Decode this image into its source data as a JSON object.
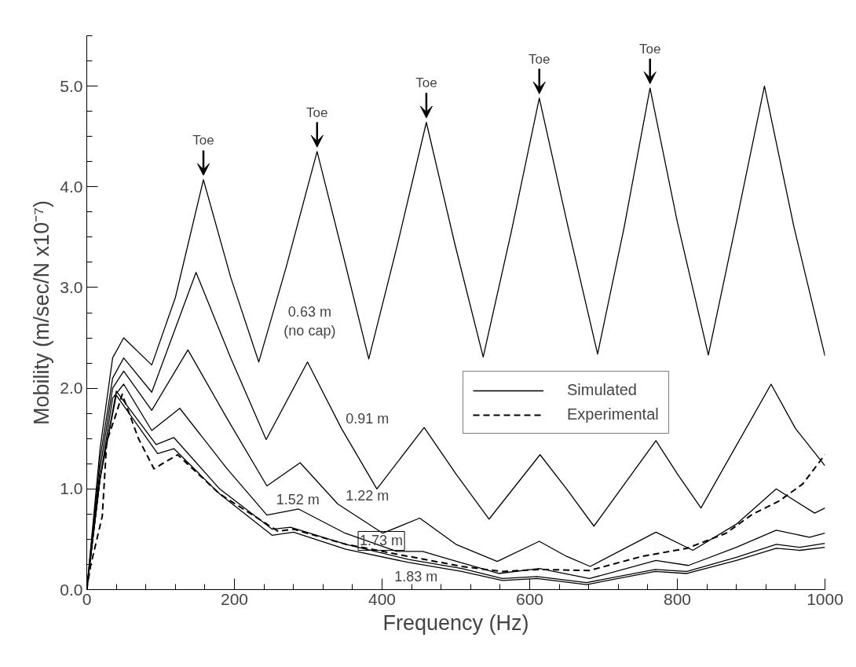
{
  "chart_data": {
    "type": "line",
    "xlabel": "Frequency (Hz)",
    "ylabel": "Mobility (m/sec/N x10⁻⁷)",
    "xlim": [
      0,
      1000
    ],
    "ylim": [
      0,
      5.5
    ],
    "xticks": [
      0,
      {
        "value": 40,
        "label": null
      },
      {
        "value": 80,
        "label": null
      },
      {
        "value": 120,
        "label": null
      },
      {
        "value": 160,
        "label": null
      },
      200,
      {
        "value": 240,
        "label": null
      },
      {
        "value": 280,
        "label": null
      },
      {
        "value": 320,
        "label": null
      },
      {
        "value": 360,
        "label": null
      },
      400,
      {
        "value": 440,
        "label": null
      },
      {
        "value": 480,
        "label": null
      },
      {
        "value": 520,
        "label": null
      },
      {
        "value": 560,
        "label": null
      },
      600,
      {
        "value": 640,
        "label": null
      },
      {
        "value": 680,
        "label": null
      },
      {
        "value": 720,
        "label": null
      },
      {
        "value": 760,
        "label": null
      },
      800,
      {
        "value": 840,
        "label": null
      },
      {
        "value": 880,
        "label": null
      },
      {
        "value": 920,
        "label": null
      },
      {
        "value": 960,
        "label": null
      },
      1000
    ],
    "yticks": [
      {
        "value": 0,
        "label": "0.0"
      },
      {
        "value": 0.25,
        "label": null
      },
      {
        "value": 0.5,
        "label": null
      },
      {
        "value": 0.75,
        "label": null
      },
      {
        "value": 1,
        "label": "1.0"
      },
      {
        "value": 1.25,
        "label": null
      },
      {
        "value": 1.5,
        "label": null
      },
      {
        "value": 1.75,
        "label": null
      },
      {
        "value": 2,
        "label": "2.0"
      },
      {
        "value": 2.25,
        "label": null
      },
      {
        "value": 2.5,
        "label": null
      },
      {
        "value": 2.75,
        "label": null
      },
      {
        "value": 3,
        "label": "3.0"
      },
      {
        "value": 3.25,
        "label": null
      },
      {
        "value": 3.5,
        "label": null
      },
      {
        "value": 3.75,
        "label": null
      },
      {
        "value": 4,
        "label": "4.0"
      },
      {
        "value": 4.25,
        "label": null
      },
      {
        "value": 4.5,
        "label": null
      },
      {
        "value": 4.75,
        "label": null
      },
      {
        "value": 5,
        "label": "5.0"
      },
      {
        "value": 5.25,
        "label": null
      },
      {
        "value": 5.5,
        "label": null
      }
    ],
    "grid": false,
    "legend": "right",
    "marker": "none",
    "series": [
      {
        "name": "Simulated",
        "color": "#000000",
        "line_style": "solid",
        "x": [
          0,
          18,
          35,
          50,
          88,
          120,
          158,
          195,
          233,
          270,
          312,
          348,
          382,
          420,
          460,
          498,
          537,
          575,
          613,
          652,
          692,
          728,
          763,
          800,
          842,
          880,
          918,
          958,
          1000
        ],
        "values": [
          0,
          1.4,
          2.3,
          2.5,
          2.23,
          2.9,
          4.07,
          3.1,
          2.26,
          3.2,
          4.35,
          3.3,
          2.29,
          3.4,
          4.64,
          3.45,
          2.31,
          3.55,
          4.88,
          3.6,
          2.34,
          3.6,
          4.98,
          3.65,
          2.33,
          3.65,
          5.0,
          3.6,
          2.32
        ]
      },
      {
        "color": "#000000",
        "line_style": "solid",
        "x": [
          0,
          18,
          35,
          50,
          88,
          148,
          195,
          243,
          299,
          345,
          393,
          457,
          500,
          545,
          614,
          650,
          687,
          771,
          800,
          832,
          927,
          960,
          1000
        ],
        "values": [
          0,
          1.3,
          2.1,
          2.3,
          1.96,
          3.15,
          2.3,
          1.49,
          2.26,
          1.6,
          1.0,
          1.61,
          1.15,
          0.7,
          1.34,
          1.0,
          0.63,
          1.48,
          1.15,
          0.81,
          2.04,
          1.6,
          1.23
        ]
      },
      {
        "color": "#000000",
        "line_style": "solid",
        "x": [
          0,
          18,
          35,
          50,
          88,
          137,
          190,
          244,
          289,
          340,
          401,
          451,
          500,
          556,
          613,
          650,
          682,
          771,
          821,
          880,
          934,
          986,
          1000
        ],
        "values": [
          0,
          1.2,
          2.0,
          2.17,
          1.78,
          2.38,
          1.7,
          1.03,
          1.26,
          0.85,
          0.56,
          0.71,
          0.45,
          0.28,
          0.48,
          0.33,
          0.23,
          0.57,
          0.39,
          0.65,
          1.0,
          0.76,
          0.81
        ]
      },
      {
        "color": "#000000",
        "line_style": "solid",
        "x": [
          0,
          18,
          35,
          50,
          88,
          126,
          190,
          244,
          287,
          350,
          420,
          455,
          492,
          558,
          613,
          681,
          771,
          815,
          880,
          934,
          979,
          1000
        ],
        "values": [
          0,
          1.1,
          1.9,
          2.04,
          1.58,
          1.8,
          1.2,
          0.74,
          0.8,
          0.56,
          0.38,
          0.38,
          0.3,
          0.16,
          0.21,
          0.11,
          0.29,
          0.24,
          0.42,
          0.59,
          0.52,
          0.56
        ]
      },
      {
        "color": "#000000",
        "line_style": "solid",
        "x": [
          0,
          18,
          40,
          94,
          118,
          180,
          251,
          276,
          351,
          436,
          508,
          563,
          610,
          677,
          770,
          813,
          880,
          934,
          966,
          1000
        ],
        "values": [
          0,
          1.1,
          1.97,
          1.44,
          1.51,
          1.0,
          0.6,
          0.62,
          0.45,
          0.3,
          0.21,
          0.11,
          0.13,
          0.07,
          0.2,
          0.18,
          0.32,
          0.45,
          0.42,
          0.46
        ]
      },
      {
        "color": "#000000",
        "line_style": "solid",
        "x": [
          0,
          18,
          40,
          96,
          118,
          180,
          251,
          280,
          351,
          436,
          508,
          563,
          610,
          677,
          770,
          813,
          880,
          934,
          966,
          1000
        ],
        "values": [
          0,
          1.1,
          1.93,
          1.35,
          1.4,
          0.95,
          0.54,
          0.57,
          0.4,
          0.27,
          0.18,
          0.09,
          0.11,
          0.05,
          0.18,
          0.16,
          0.29,
          0.41,
          0.39,
          0.42
        ]
      },
      {
        "name": "Experimental",
        "color": "#000000",
        "line_style": "dashed",
        "x": [
          0,
          5,
          21,
          27,
          40,
          48,
          70,
          91,
          123,
          180,
          259,
          280,
          351,
          436,
          508,
          563,
          613,
          681,
          752,
          813,
          866,
          902,
          938,
          970,
          1000
        ],
        "values": [
          0,
          0.23,
          0.73,
          1.47,
          1.75,
          1.94,
          1.5,
          1.2,
          1.34,
          0.95,
          0.58,
          0.6,
          0.45,
          0.33,
          0.23,
          0.18,
          0.2,
          0.19,
          0.33,
          0.41,
          0.56,
          0.75,
          0.88,
          1.05,
          1.34
        ]
      }
    ],
    "annotations": [
      "Toe",
      "Toe",
      "Toe",
      "Toe",
      "Toe",
      "0.63 m\n(no cap)",
      "0.91 m",
      "1.52 m",
      "1.22 m",
      "1.73 m",
      "1.83 m"
    ]
  }
}
